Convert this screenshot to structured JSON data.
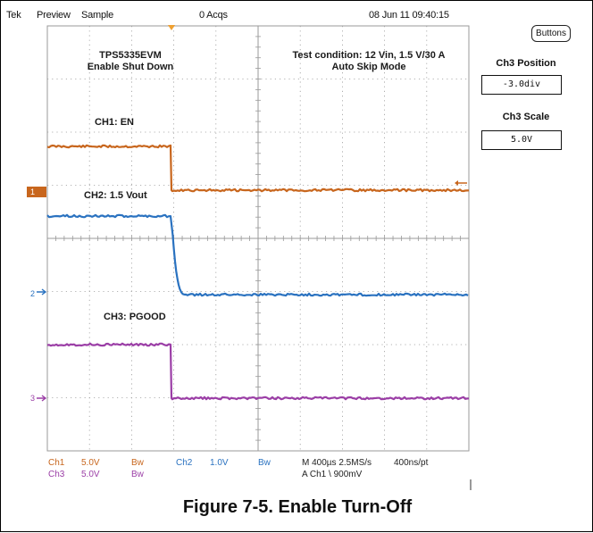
{
  "status_bar": {
    "brand": "Tek",
    "mode": "Preview",
    "acq_mode": "Sample",
    "acqs": "0 Acqs",
    "timestamp": "08 Jun 11 09:40:15"
  },
  "plot": {
    "title": "TPS5335EVM",
    "subtitle": "Enable Shut Down",
    "condition_line1": "Test condition: 12 Vin, 1.5 V/30 A",
    "condition_line2": "Auto Skip Mode",
    "ch1_label": "CH1: EN",
    "ch2_label": "CH2: 1.5 Vout",
    "ch3_label": "CH3: PGOOD",
    "markers": {
      "ch1": "1",
      "ch2": "2",
      "ch3": "3"
    }
  },
  "colors": {
    "ch1": "#c8661d",
    "ch2": "#2a72c0",
    "ch3": "#9b3ea6",
    "grid": "#9a9a9a",
    "trigger": "#f0a030"
  },
  "right_panel": {
    "buttons_label": "Buttons",
    "position_title": "Ch3 Position",
    "position_value": "-3.0div",
    "scale_title": "Ch3 Scale",
    "scale_value": "5.0V"
  },
  "readout": {
    "ch1_name": "Ch1",
    "ch1_scale": "5.0V",
    "ch1_bw": "Bw",
    "ch2_name": "Ch2",
    "ch2_scale": "1.0V",
    "ch2_bw": "Bw",
    "ch3_name": "Ch3",
    "ch3_scale": "5.0V",
    "ch3_bw": "Bw",
    "timebase": "M 400µs 2.5MS/s",
    "record": "400ns/pt",
    "trigger": "A  Ch1  \\  900mV"
  },
  "caption": "Figure 7-5. Enable Turn-Off"
}
